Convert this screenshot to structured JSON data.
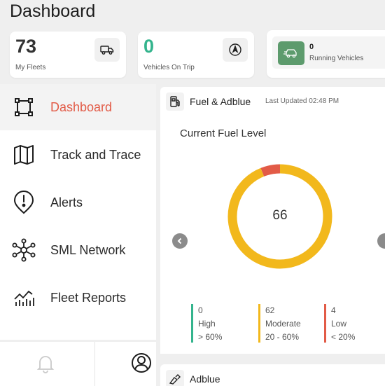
{
  "page": {
    "title": "Dashboard"
  },
  "stats": {
    "fleets": {
      "value": "73",
      "label": "My Fleets",
      "icon": "truck-icon"
    },
    "on_trip": {
      "value": "0",
      "label": "Vehicles On Trip",
      "icon": "compass-icon",
      "color": "#34b48d"
    },
    "running": {
      "value": "0",
      "label": "Running Vehicles",
      "icon": "vehicle-icon",
      "color": "#5d9b6d"
    }
  },
  "sidebar": {
    "items": [
      {
        "label": "Dashboard",
        "icon": "dashboard-icon",
        "active": true
      },
      {
        "label": "Track and Trace",
        "icon": "map-icon"
      },
      {
        "label": "Alerts",
        "icon": "alert-pin-icon"
      },
      {
        "label": "SML Network",
        "icon": "network-icon"
      },
      {
        "label": "Fleet Reports",
        "icon": "chart-icon"
      }
    ],
    "footer": {
      "bell_icon": "bell-icon",
      "user_icon": "user-icon"
    },
    "accent": "#e25b47"
  },
  "fuel": {
    "title": "Fuel & Adblue",
    "updated": "Last Updated 02:48 PM",
    "subtitle": "Current Fuel Level",
    "total": "66",
    "segments": [
      {
        "count": "0",
        "name": "High",
        "range": "> 60%",
        "color": "#34b48d"
      },
      {
        "count": "62",
        "name": "Moderate",
        "range": "20 - 60%",
        "color": "#f2b81c"
      },
      {
        "count": "4",
        "name": "Low",
        "range": "< 20%",
        "color": "#e25b47"
      }
    ]
  },
  "adblue": {
    "title": "Adblue"
  }
}
